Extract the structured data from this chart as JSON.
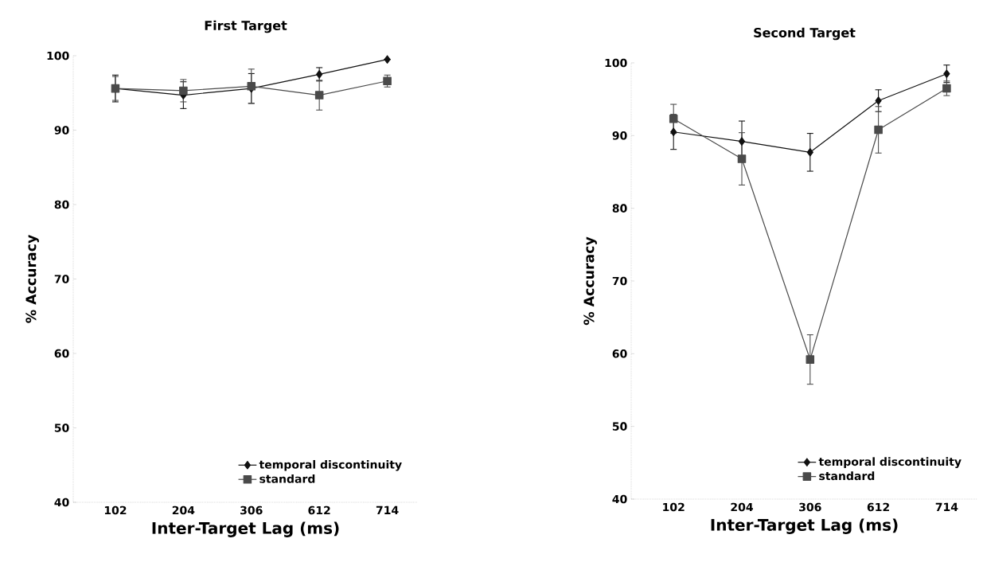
{
  "chart_data": [
    {
      "type": "line",
      "title": "First Target",
      "xlabel": "Inter-Target Lag (ms)",
      "ylabel": "% Accuracy",
      "categories": [
        "102",
        "204",
        "306",
        "612",
        "714"
      ],
      "ylim": [
        40,
        100
      ],
      "yticks": [
        40,
        50,
        60,
        70,
        80,
        90,
        100
      ],
      "legend": "bottom right",
      "grid": false,
      "series": [
        {
          "name": "temporal discontinuity",
          "color": "#111111",
          "marker": "diamond",
          "values": [
            95.6,
            94.7,
            95.6,
            97.5,
            99.5
          ],
          "errors": [
            1.8,
            1.8,
            2.0,
            0.9,
            null
          ]
        },
        {
          "name": "standard",
          "color": "#4a4a4a",
          "marker": "square",
          "values": [
            95.6,
            95.3,
            95.9,
            94.7,
            96.6
          ],
          "errors": [
            1.6,
            1.5,
            2.3,
            2.0,
            0.8
          ]
        }
      ]
    },
    {
      "type": "line",
      "title": "Second Target",
      "xlabel": "Inter-Target Lag (ms)",
      "ylabel": "% Accuracy",
      "categories": [
        "102",
        "204",
        "306",
        "612",
        "714"
      ],
      "ylim": [
        40,
        100
      ],
      "yticks": [
        40,
        50,
        60,
        70,
        80,
        90,
        100
      ],
      "legend": "bottom right",
      "grid": false,
      "series": [
        {
          "name": "temporal discontinuity",
          "color": "#111111",
          "marker": "diamond",
          "values": [
            90.5,
            89.2,
            87.7,
            94.8,
            98.5
          ],
          "errors": [
            2.4,
            2.8,
            2.6,
            1.5,
            1.2
          ]
        },
        {
          "name": "standard",
          "color": "#4a4a4a",
          "marker": "square",
          "values": [
            92.3,
            86.8,
            59.2,
            90.8,
            96.5
          ],
          "errors": [
            2.0,
            3.6,
            3.4,
            3.2,
            1.0
          ]
        }
      ]
    }
  ]
}
